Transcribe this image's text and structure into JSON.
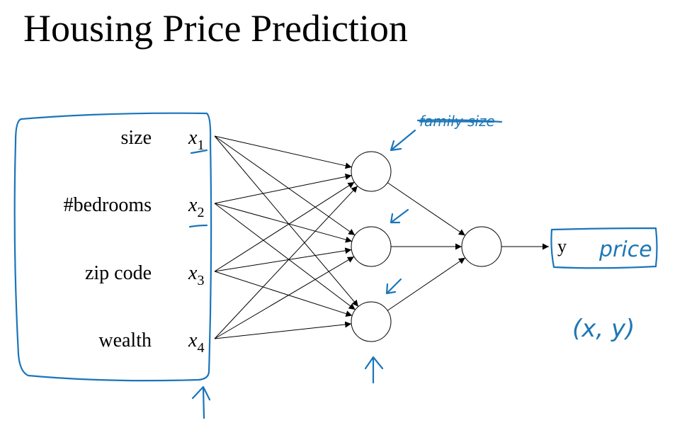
{
  "title": "Housing Price Prediction",
  "inputs": [
    {
      "label": "size",
      "symbol": "x",
      "subscript": "1"
    },
    {
      "label": "#bedrooms",
      "symbol": "x",
      "subscript": "2"
    },
    {
      "label": "zip code",
      "symbol": "x",
      "subscript": "3"
    },
    {
      "label": "wealth",
      "symbol": "x",
      "subscript": "4"
    }
  ],
  "output": {
    "symbol": "y",
    "annotation": "price"
  },
  "annotations": {
    "struck_note": "family size",
    "pair": "(x, y)"
  }
}
